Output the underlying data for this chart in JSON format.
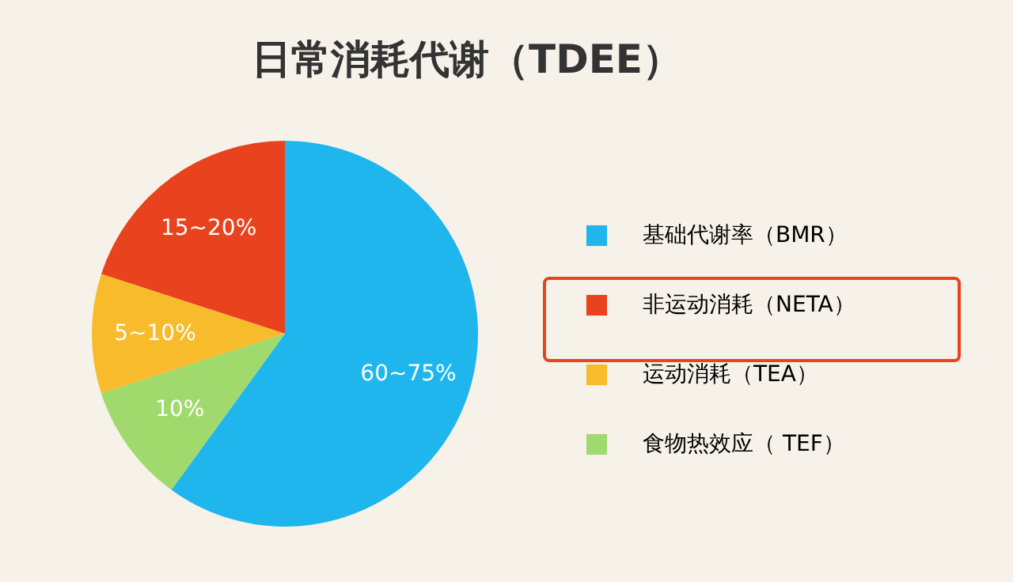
{
  "chart_data": {
    "type": "pie",
    "title": "日常消耗代谢（TDEE）",
    "categories": [
      "基础代谢率（BMR）",
      "非运动消耗（NETA）",
      "运动消耗（TEA）",
      "食物热效应（ TEF）"
    ],
    "values": [
      60,
      20,
      10,
      10
    ],
    "colors": [
      "#1fb6ee",
      "#e8431e",
      "#f8bb2c",
      "#a0d96c"
    ],
    "value_labels": [
      "60~75%",
      "15~20%",
      "5~10%",
      "10%"
    ],
    "legend": "right"
  }
}
